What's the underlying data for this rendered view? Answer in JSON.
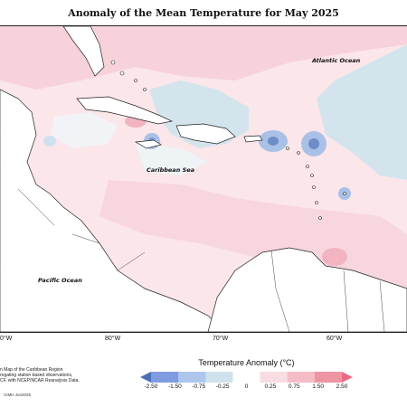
{
  "title": "Anomaly of the Mean Temperature for May 2025",
  "map": {
    "ocean_labels": {
      "atlantic": "Atlantic Ocean",
      "caribbean": "Caribbean Sea",
      "pacific": "Pacific Ocean"
    },
    "longitude_labels": [
      "80°W",
      "70°W",
      "60°W"
    ],
    "left_edge_label": "0°W"
  },
  "legend": {
    "title": "Temperature Anomaly (°C)",
    "ticks": [
      "-2.50",
      "-1.50",
      "-0.75",
      "-0.25",
      "0",
      "0.25",
      "0.75",
      "1.50",
      "2.50"
    ],
    "colors": [
      "#4d6fb6",
      "#7f9ce0",
      "#aec6ee",
      "#cfe1ec",
      "#ffffff",
      "#f9dde3",
      "#f5bcc7",
      "#ee95a4",
      "#e96a84"
    ]
  },
  "description": [
    "n Map of the Caribbean Region",
    "regating station based observations,",
    "CF, with NCEP/NCAR Reanalysis Data."
  ],
  "credit": "CIMH Jun2025"
}
